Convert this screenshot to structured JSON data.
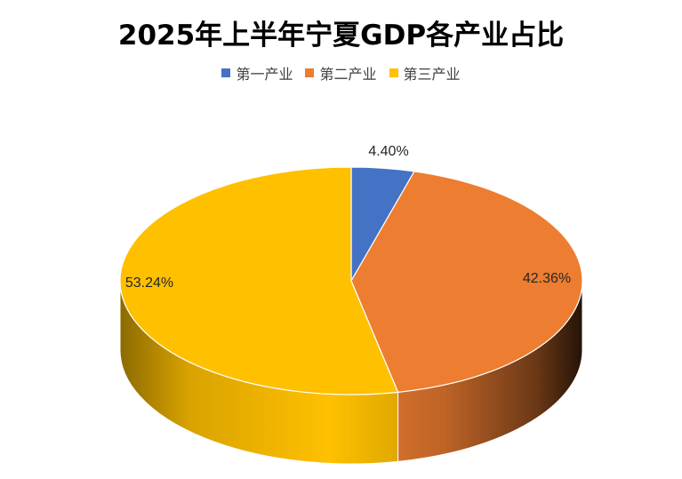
{
  "chart_data": {
    "type": "pie",
    "title": "2025年上半年宁夏GDP各产业占比",
    "categories": [
      "第一产业",
      "第二产业",
      "第三产业"
    ],
    "values": [
      4.4,
      42.36,
      53.24
    ],
    "labels": [
      "4.40%",
      "42.36%",
      "53.24%"
    ],
    "colors": [
      "#4472C4",
      "#ED7D31",
      "#FFC000"
    ],
    "legend_position": "top",
    "style": "3d"
  }
}
